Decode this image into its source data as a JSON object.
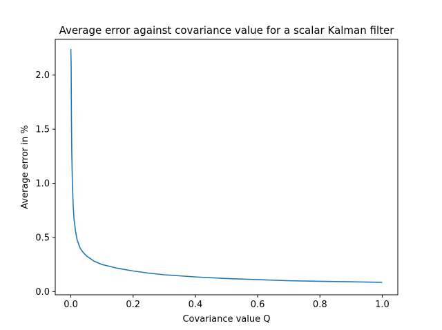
{
  "chart_data": {
    "type": "line",
    "title": "Average error against covariance value for a scalar Kalman filter",
    "xlabel": "Covariance value Q",
    "ylabel": "Average error in %",
    "xlim": [
      -0.05,
      1.05
    ],
    "ylim": [
      -0.03,
      2.33
    ],
    "xticks": [
      0.0,
      0.2,
      0.4,
      0.6,
      0.8,
      1.0
    ],
    "xtick_labels": [
      "0.0",
      "0.2",
      "0.4",
      "0.6",
      "0.8",
      "1.0"
    ],
    "yticks": [
      0.0,
      0.5,
      1.0,
      1.5,
      2.0
    ],
    "ytick_labels": [
      "0.0",
      "0.5",
      "1.0",
      "1.5",
      "2.0"
    ],
    "grid": false,
    "series": [
      {
        "color": "#1f77b4",
        "x": [
          0.0,
          0.001,
          0.002,
          0.003,
          0.005,
          0.0075,
          0.01,
          0.015,
          0.02,
          0.03,
          0.04,
          0.05,
          0.075,
          0.1,
          0.15,
          0.2,
          0.25,
          0.3,
          0.4,
          0.5,
          0.6,
          0.7,
          0.8,
          0.9,
          1.0
        ],
        "y": [
          2.24,
          2.1,
          1.6,
          1.3,
          1.0,
          0.8,
          0.68,
          0.56,
          0.48,
          0.4,
          0.36,
          0.33,
          0.28,
          0.25,
          0.215,
          0.19,
          0.17,
          0.155,
          0.135,
          0.12,
          0.11,
          0.1,
          0.095,
          0.09,
          0.085
        ]
      }
    ]
  }
}
